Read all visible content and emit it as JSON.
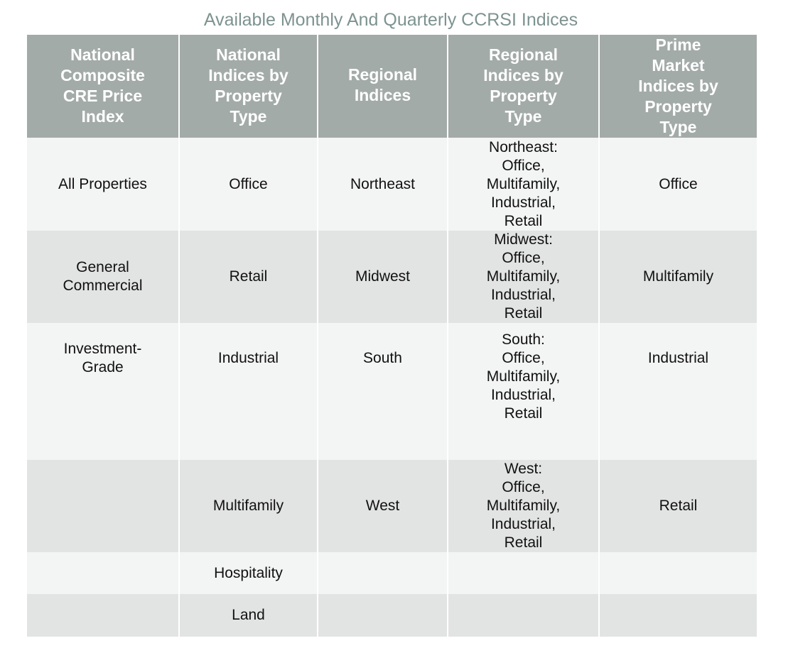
{
  "title": "Available Monthly And Quarterly CCRSI Indices",
  "headers": [
    "National\nComposite\nCRE Price\nIndex",
    "National\nIndices by\nProperty\nType",
    "Regional\nIndices",
    "Regional\nIndices by\nProperty\nType",
    "Prime\nMarket\nIndices by\nProperty\nType"
  ],
  "rows": [
    [
      "All Properties",
      "Office",
      "Northeast",
      "Northeast:\nOffice,\nMultifamily,\nIndustrial,\nRetail",
      "Office"
    ],
    [
      "General\nCommercial",
      "Retail",
      "Midwest",
      "Midwest:\nOffice,\nMultifamily,\nIndustrial,\nRetail",
      "Multifamily"
    ],
    [
      "Investment-\nGrade",
      "Industrial",
      "South",
      "South:\nOffice,\nMultifamily,\nIndustrial,\nRetail",
      "Industrial"
    ],
    [
      "",
      "Multifamily",
      "West",
      "West:\nOffice,\nMultifamily,\nIndustrial,\nRetail",
      "Retail"
    ],
    [
      "",
      "Hospitality",
      "",
      "",
      ""
    ],
    [
      "",
      "Land",
      "",
      "",
      ""
    ]
  ]
}
